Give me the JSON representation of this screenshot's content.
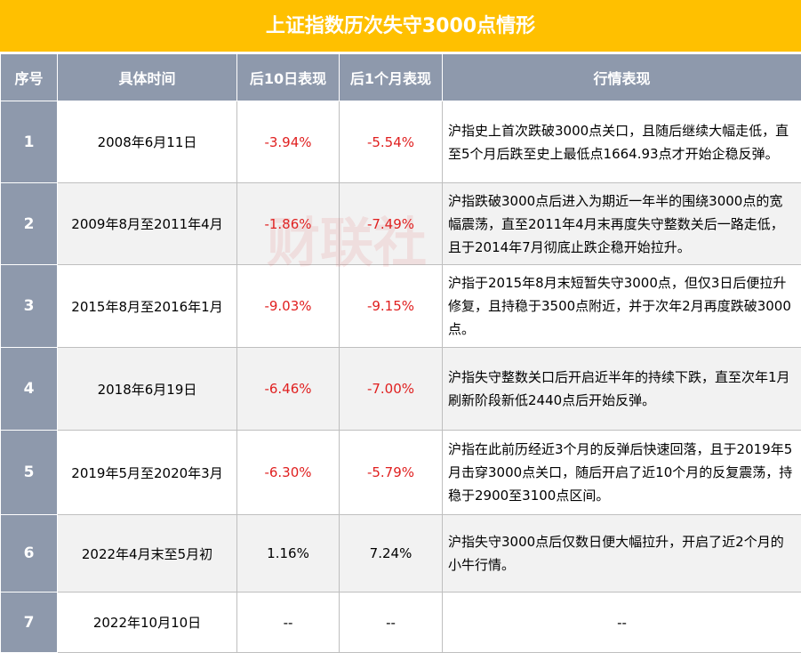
{
  "title": "上证指数历次失守3000点情形",
  "watermark": "财联社",
  "table": {
    "header": [
      "序号",
      "具体时间",
      "后10日表现",
      "后1个月表现",
      "行情表现"
    ],
    "rows": [
      [
        "1",
        "2008年6月11日",
        "-3.94%",
        "-5.54%",
        "沪指史上首次跌破3000点关口，且随后继续大幅走低，直至5个月后跌至史上最低点1664.93点才开始企稳反弹。"
      ],
      [
        "2",
        "2009年8月至2011年4月",
        "-1.86%",
        "-7.49%",
        "沪指跌破3000点后进入为期近一年半的围绕3000点的宽幅震荡，直至2011年4月末再度失守整数关后一路走低，且于2014年7月彻底止跌企稳开始拉升。"
      ],
      [
        "3",
        "2015年8月至2016年1月",
        "-9.03%",
        "-9.15%",
        "沪指于2015年8月末短暂失守3000点，但仅3日后便拉升修复，且持稳于3500点附近，并于次年2月再度跌破3000点。"
      ],
      [
        "4",
        "2018年6月19日",
        "-6.46%",
        "-7.00%",
        "沪指失守整数关口后开启近半年的持续下跌，直至次年1月刷新阶段新低2440点后开始反弹。"
      ],
      [
        "5",
        "2019年5月至2020年3月",
        "-6.30%",
        "-5.79%",
        "沪指在此前历经近3个月的反弹后快速回落，且于2019年5月击穿3000点关口，随后开启了近10个月的反复震荡，持稳于2900至3100点区间。"
      ],
      [
        "6",
        "2022年4月末至5月初",
        "1.16%",
        "7.24%",
        "沪指失守3000点后仅数日便大幅拉升，开启了近2个月的小牛行情。"
      ],
      [
        "7",
        "2022年10月10日",
        "--",
        "--",
        "--"
      ]
    ]
  }
}
